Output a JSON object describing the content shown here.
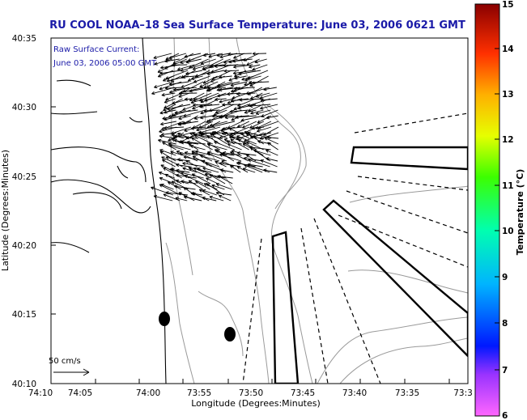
{
  "title": "RU COOL  NOAA–18  Sea Surface Temperature:  June 03, 2006 0621 GMT",
  "annotation": {
    "line1": "Raw Surface Current:",
    "line2": "June 03, 2006 05:00 GMT"
  },
  "map": {
    "x_axis_label": "Longitude (Degrees:Minutes)",
    "y_axis_label": "Latitude (Degrees:Minutes)",
    "x_ticks": [
      "74:10",
      "74:05",
      "74:00",
      "73:55",
      "73:50",
      "73:45",
      "73:40",
      "73:35",
      "73:3"
    ],
    "y_ticks": [
      "40:35",
      "40:30",
      "40:25",
      "40:20",
      "40:15",
      "40:10"
    ],
    "scale_label": "50 cm/s"
  },
  "colorbar": {
    "label": "Temperature (°C)",
    "ticks": [
      "15",
      "14",
      "13",
      "12",
      "11",
      "10",
      "9",
      "8",
      "7",
      "6"
    ],
    "range": [
      6,
      15
    ],
    "colors": [
      "#ff66ff",
      "#6a00c8",
      "#0018ff",
      "#00b4ff",
      "#00ffb0",
      "#3cff00",
      "#e6ff00",
      "#ffb000",
      "#ff3000",
      "#8a0000"
    ]
  },
  "colors": {
    "title": "#1a1aa8",
    "contour": "#9a9a9a",
    "coast": "#000000",
    "vectors": "#000000"
  }
}
